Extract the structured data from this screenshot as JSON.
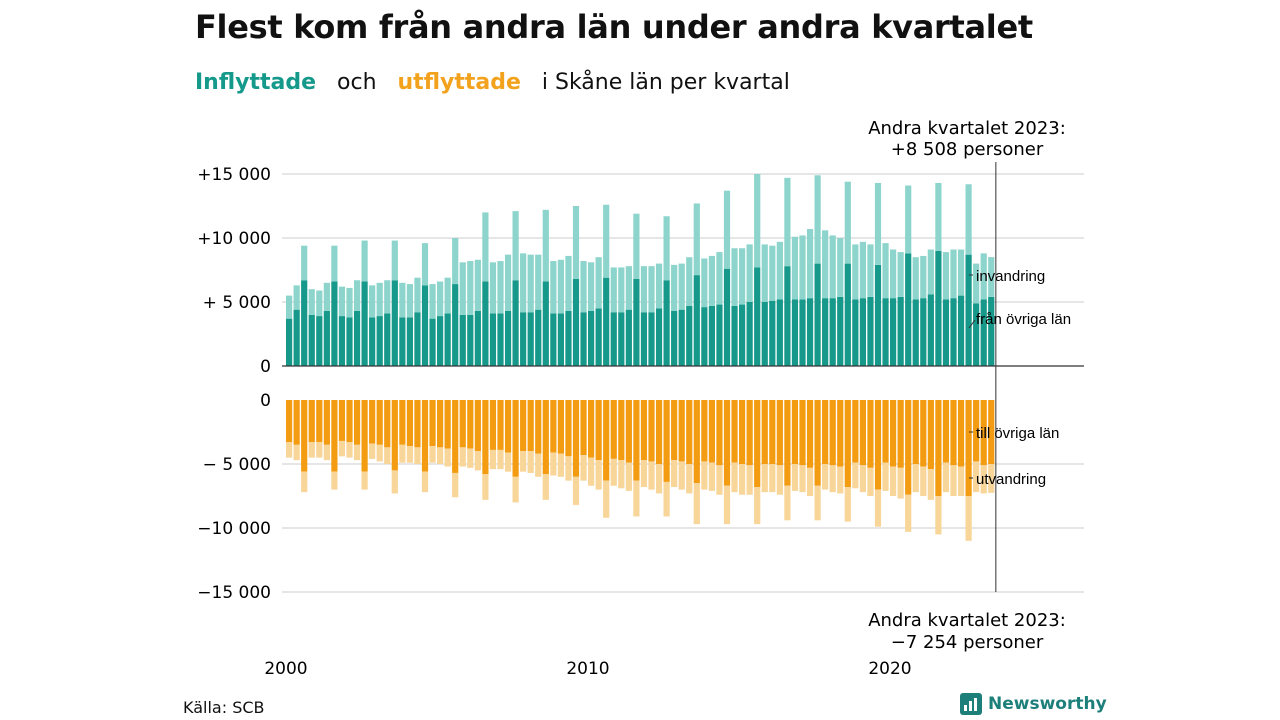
{
  "title": "Flest kom från andra län under andra kvartalet",
  "subtitle": {
    "inflow_word": "Inflyttade",
    "and_word": "och",
    "outflow_word": "utflyttade",
    "rest": "i Skåne  län  per  kvartal"
  },
  "source": "Källa: SCB",
  "brand": {
    "name": "Newsworthy",
    "icon": "bar-chart-icon"
  },
  "colors": {
    "inflow_other_counties": "#16998a",
    "inflow_immigration": "#8dd5cc",
    "outflow_other_counties": "#f39c12",
    "outflow_emigration": "#f8d598",
    "grid": "#dddddd",
    "axis": "#333333"
  },
  "chart_data": [
    {
      "type": "bar",
      "stacked": true,
      "panel": "inflyttade",
      "x_start": "2000 Q1",
      "x_end": "2023 Q2",
      "x_tick_labels": [
        "2000",
        "2010",
        "2020"
      ],
      "y_tick_labels": [
        "0",
        "+ 5 000",
        "+10 000",
        "+15 000"
      ],
      "ylim": [
        0,
        15000
      ],
      "grid": true,
      "series": [
        {
          "label": "från övriga län",
          "values": [
            3700,
            4400,
            6700,
            4000,
            3900,
            4300,
            6600,
            3900,
            3800,
            4300,
            6600,
            3800,
            3900,
            4100,
            6700,
            3800,
            3800,
            4200,
            6300,
            3700,
            3900,
            4100,
            6400,
            4000,
            4000,
            4300,
            6600,
            4100,
            4100,
            4300,
            6700,
            4200,
            4200,
            4400,
            6600,
            4100,
            4100,
            4300,
            6800,
            4200,
            4300,
            4500,
            6900,
            4200,
            4200,
            4400,
            6800,
            4200,
            4200,
            4500,
            6700,
            4300,
            4400,
            4700,
            7100,
            4600,
            4700,
            4800,
            7600,
            4700,
            4800,
            5000,
            7700,
            5000,
            5100,
            5200,
            7800,
            5200,
            5200,
            5300,
            8000,
            5300,
            5300,
            5400,
            8000,
            5200,
            5300,
            5400,
            7900,
            5300,
            5300,
            5400,
            8800,
            5200,
            5300,
            5600,
            9000,
            5200,
            5300,
            5500,
            8700,
            4900,
            5200,
            5400
          ]
        },
        {
          "label": "invandring",
          "values": [
            1800,
            1900,
            2700,
            2000,
            2000,
            2200,
            2800,
            2300,
            2300,
            2400,
            3200,
            2500,
            2600,
            2600,
            3100,
            2700,
            2600,
            2700,
            3300,
            2700,
            2700,
            2800,
            3600,
            4100,
            4200,
            4000,
            5400,
            4000,
            4100,
            4400,
            5400,
            4600,
            4500,
            4300,
            5600,
            4100,
            4200,
            4300,
            5700,
            4000,
            3800,
            4000,
            5700,
            3500,
            3500,
            3400,
            5100,
            3600,
            3600,
            3500,
            5000,
            3600,
            3600,
            3800,
            5600,
            3800,
            3900,
            4100,
            6100,
            4500,
            4400,
            4500,
            7300,
            4500,
            4300,
            4500,
            6900,
            4900,
            5000,
            5400,
            6900,
            5300,
            4900,
            4600,
            6400,
            4300,
            4400,
            4100,
            6400,
            4300,
            3800,
            3500,
            5300,
            3300,
            3300,
            3500,
            5300,
            3700,
            3800,
            3600,
            5500,
            3100,
            3600,
            3108
          ]
        }
      ]
    },
    {
      "type": "bar",
      "stacked": true,
      "panel": "utflyttade",
      "x_start": "2000 Q1",
      "x_end": "2023 Q2",
      "y_tick_labels": [
        "0",
        "− 5 000",
        "−10 000",
        "−15 000"
      ],
      "ylim": [
        -15000,
        0
      ],
      "grid": true,
      "series": [
        {
          "label": "till övriga län",
          "values": [
            -3300,
            -3500,
            -5600,
            -3300,
            -3300,
            -3500,
            -5600,
            -3200,
            -3300,
            -3500,
            -5600,
            -3400,
            -3500,
            -3700,
            -5500,
            -3500,
            -3600,
            -3700,
            -5600,
            -3600,
            -3700,
            -3800,
            -5700,
            -3700,
            -3800,
            -4000,
            -5800,
            -3900,
            -3900,
            -4100,
            -6000,
            -4000,
            -4000,
            -4200,
            -5800,
            -4100,
            -4200,
            -4400,
            -6000,
            -4300,
            -4500,
            -4700,
            -6300,
            -4600,
            -4700,
            -4900,
            -6300,
            -4700,
            -4800,
            -5000,
            -6400,
            -4700,
            -4800,
            -5000,
            -6500,
            -4800,
            -4900,
            -5100,
            -6700,
            -4900,
            -5000,
            -5100,
            -6800,
            -5000,
            -5000,
            -5100,
            -6700,
            -5000,
            -5100,
            -5300,
            -6700,
            -5000,
            -5100,
            -5200,
            -6800,
            -4900,
            -5100,
            -5300,
            -7000,
            -4900,
            -5200,
            -5300,
            -7400,
            -5000,
            -5200,
            -5400,
            -7500,
            -4900,
            -5100,
            -5200,
            -7500,
            -4800,
            -5100,
            -5000
          ]
        },
        {
          "label": "utvandring",
          "values": [
            -1200,
            -1200,
            -1600,
            -1200,
            -1200,
            -1200,
            -1400,
            -1200,
            -1200,
            -1200,
            -1400,
            -1200,
            -1300,
            -1300,
            -1800,
            -1400,
            -1300,
            -1300,
            -1600,
            -1300,
            -1300,
            -1400,
            -1900,
            -1500,
            -1500,
            -1500,
            -2000,
            -1500,
            -1500,
            -1500,
            -2000,
            -1600,
            -1700,
            -1800,
            -2000,
            -1800,
            -1800,
            -1900,
            -2200,
            -2000,
            -2200,
            -2300,
            -2900,
            -2100,
            -2200,
            -2200,
            -2800,
            -2100,
            -2200,
            -2300,
            -2700,
            -2100,
            -2200,
            -2300,
            -3200,
            -2200,
            -2200,
            -2300,
            -3000,
            -2300,
            -2400,
            -2300,
            -2900,
            -2200,
            -2200,
            -2300,
            -2700,
            -2100,
            -2100,
            -2200,
            -2700,
            -2000,
            -2100,
            -2100,
            -2700,
            -2000,
            -2100,
            -2200,
            -2900,
            -2200,
            -2300,
            -2400,
            -2900,
            -2200,
            -2300,
            -2400,
            -3000,
            -2300,
            -2400,
            -2300,
            -3500,
            -2400,
            -2200,
            -2254
          ]
        }
      ]
    }
  ],
  "annotations": {
    "top_label": [
      "Andra kvartalet 2023:",
      "+8 508 personer"
    ],
    "bottom_label": [
      "Andra kvartalet 2023:",
      "−7 254 personer"
    ]
  }
}
